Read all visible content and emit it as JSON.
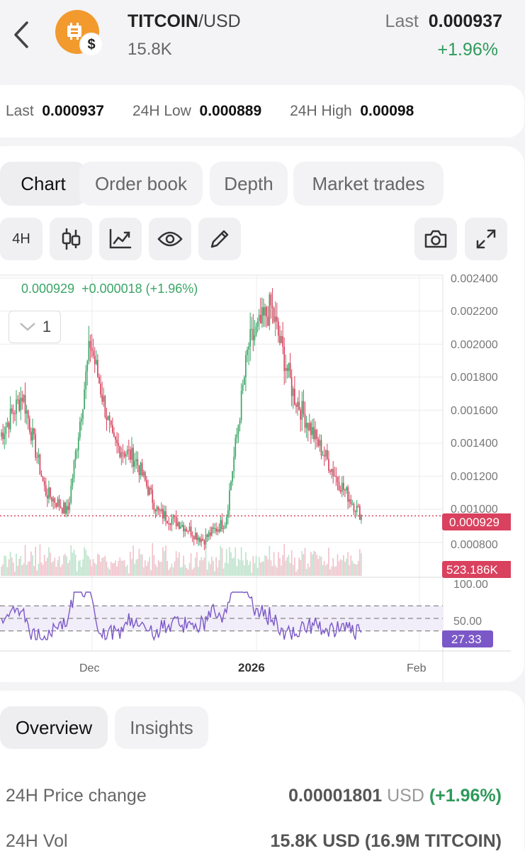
{
  "header": {
    "pair_base": "TITCOIN",
    "pair_quote": "/USD",
    "volume": "15.8K",
    "last_label": "Last",
    "last_value": "0.000937",
    "change": "+1.96%"
  },
  "stats": {
    "last_label": "Last",
    "last_value": "0.000937",
    "low_label": "24H Low",
    "low_value": "0.000889",
    "high_label": "24H High",
    "high_value": "0.00098"
  },
  "tabs": [
    "Chart",
    "Order book",
    "Depth",
    "Market trades"
  ],
  "toolbar": {
    "interval": "4H",
    "icons": [
      "candlestick-icon",
      "indicator-icon",
      "eye-icon",
      "pencil-icon",
      "camera-icon",
      "expand-icon"
    ]
  },
  "chart": {
    "readout_price": "0.000929",
    "readout_change": "+0.000018 (+1.96%)",
    "period_value": "1",
    "price_ticks": [
      "0.002400",
      "0.002200",
      "0.002000",
      "0.001800",
      "0.001600",
      "0.001400",
      "0.001200",
      "0.001000",
      "0.000800"
    ],
    "current_price_tag": "0.000929",
    "volume_tag": "523.186K",
    "rsi_ticks": [
      "100.00",
      "50.00"
    ],
    "rsi_tag": "27.33",
    "x_ticks": [
      "Dec",
      "2026",
      "Feb"
    ]
  },
  "chart_data": {
    "type": "candlestick",
    "y_range": [
      0.00072,
      0.0024
    ],
    "key_prices": [
      0.00142,
      0.00168,
      0.00108,
      0.00095,
      0.002,
      0.00138,
      0.00128,
      0.00095,
      0.00088,
      0.00078,
      0.0009,
      0.00198,
      0.00222,
      0.00168,
      0.0014,
      0.00114,
      0.00093
    ],
    "current_price": 0.000929,
    "rsi_levels": [
      30,
      50,
      70
    ],
    "rsi_current": 27.33,
    "colors": {
      "up": "#3aa566",
      "down": "#d9415e",
      "rsi": "#7b58c7"
    }
  },
  "bottom_tabs": [
    "Overview",
    "Insights"
  ],
  "overview": {
    "price_change_label": "24H Price change",
    "price_change_value": "0.00001801",
    "price_change_unit": "USD",
    "price_change_pct": "(+1.96%)",
    "vol_label": "24H Vol",
    "vol_value": "15.8K USD (16.9M TITCOIN)"
  }
}
